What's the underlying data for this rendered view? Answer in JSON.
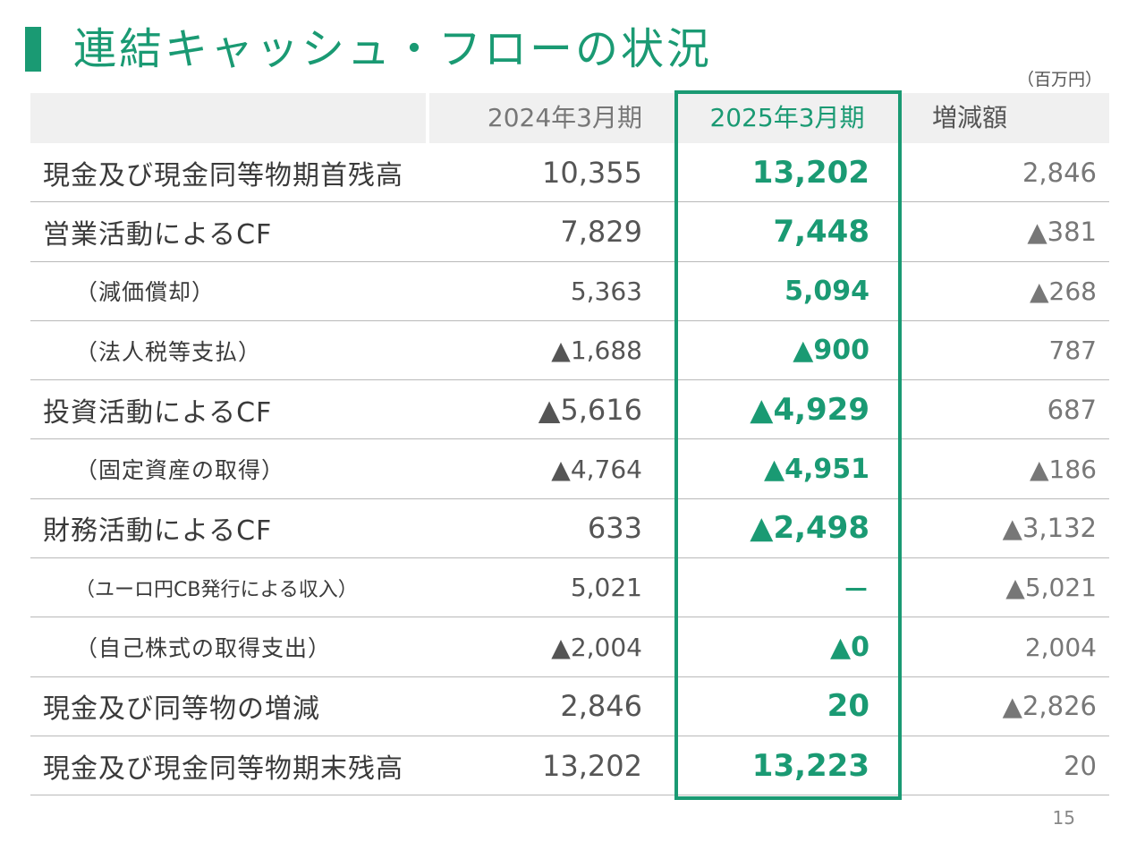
{
  "title": "連結キャッシュ・フローの状況",
  "unit": "（百万円）",
  "columns": {
    "prev": "2024年3月期",
    "curr": "2025年3月期",
    "diff": "増減額"
  },
  "rows": [
    {
      "label": "現金及び現金同等物期首残高",
      "prev": "10,355",
      "curr": "13,202",
      "diff": "2,846"
    },
    {
      "label": "営業活動によるCF",
      "prev": "7,829",
      "curr": "7,448",
      "diff": "▲381"
    },
    {
      "label": "（減価償却）",
      "prev": "5,363",
      "curr": "5,094",
      "diff": "▲268"
    },
    {
      "label": "（法人税等支払）",
      "prev": "▲1,688",
      "curr": "▲900",
      "diff": "787"
    },
    {
      "label": "投資活動によるCF",
      "prev": "▲5,616",
      "curr": "▲4,929",
      "diff": "687"
    },
    {
      "label": "（固定資産の取得）",
      "prev": "▲4,764",
      "curr": "▲4,951",
      "diff": "▲186"
    },
    {
      "label": "財務活動によるCF",
      "prev": "633",
      "curr": "▲2,498",
      "diff": "▲3,132"
    },
    {
      "label": "（ユーロ円CB発行による収入）",
      "prev": "5,021",
      "curr": "－",
      "diff": "▲5,021"
    },
    {
      "label": "（自己株式の取得支出）",
      "prev": "▲2,004",
      "curr": "▲0",
      "diff": "2,004"
    },
    {
      "label": "現金及び同等物の増減",
      "prev": "2,846",
      "curr": "20",
      "diff": "▲2,826"
    },
    {
      "label": "現金及び現金同等物期末残高",
      "prev": "13,202",
      "curr": "13,223",
      "diff": "20"
    }
  ],
  "page_number": "15",
  "colors": {
    "accent": "#1a9a73",
    "header_bg": "#f0f0f0",
    "rule": "#b9b9b9"
  }
}
